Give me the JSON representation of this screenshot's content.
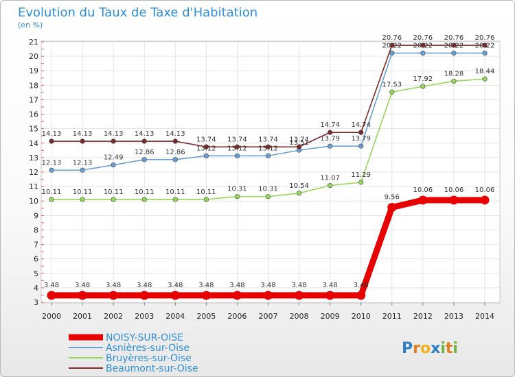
{
  "chart_data": {
    "type": "line",
    "title": "Evolution du Taux de Taxe d'Habitation",
    "subtitle": "(en %)",
    "x": [
      "2000",
      "2001",
      "2002",
      "2003",
      "2004",
      "2005",
      "2006",
      "2007",
      "2008",
      "2009",
      "2010",
      "2011",
      "2012",
      "2013",
      "2014"
    ],
    "ylim": [
      3,
      21
    ],
    "yticks": [
      3,
      4,
      5,
      6,
      7,
      8,
      9,
      10,
      11,
      12,
      13,
      14,
      15,
      16,
      17,
      18,
      19,
      20,
      21
    ],
    "grid": true,
    "legend_position": "bottom-left",
    "series": [
      {
        "name": "NOISY-SUR-OISE",
        "color": "#e60000",
        "values": [
          3.48,
          3.48,
          3.48,
          3.48,
          3.48,
          3.48,
          3.48,
          3.48,
          3.48,
          3.48,
          3.48,
          9.56,
          10.06,
          10.06,
          10.06
        ],
        "labels": [
          "3.48",
          "3.48",
          "3.48",
          "3.48",
          "3.48",
          "3.48",
          "3.48",
          "3.48",
          "3.48",
          "3.48",
          "3.48",
          "9.56",
          "10.06",
          "10.06",
          "10.06"
        ]
      },
      {
        "name": "Asnières-sur-Oise",
        "color": "#6a9fd3",
        "values": [
          12.13,
          12.13,
          12.49,
          12.86,
          12.86,
          13.12,
          13.12,
          13.12,
          13.51,
          13.79,
          13.79,
          20.22,
          20.22,
          20.22,
          20.22
        ],
        "labels": [
          "12.13",
          "12.13",
          "12.49",
          "12.86",
          "12.86",
          "13.12",
          "13.12",
          "13.12",
          "13.51",
          "13.79",
          "13.79",
          "20.22",
          "20.22",
          "20.22",
          "20.22"
        ]
      },
      {
        "name": "Bruyères-sur-Oise",
        "color": "#96d65a",
        "values": [
          10.11,
          10.11,
          10.11,
          10.11,
          10.11,
          10.11,
          10.31,
          10.31,
          10.54,
          11.07,
          11.29,
          17.53,
          17.92,
          18.28,
          18.44
        ],
        "labels": [
          "10.11",
          "10.11",
          "10.11",
          "10.11",
          "10.11",
          "10.11",
          "10.31",
          "10.31",
          "10.54",
          "11.07",
          "11.29",
          "17.53",
          "17.92",
          "18.28",
          "18.44"
        ]
      },
      {
        "name": "Beaumont-sur-Oise",
        "color": "#7a2a2a",
        "values": [
          14.13,
          14.13,
          14.13,
          14.13,
          14.13,
          13.74,
          13.74,
          13.74,
          13.74,
          14.74,
          14.74,
          20.76,
          20.76,
          20.76,
          20.76
        ],
        "labels": [
          "14.13",
          "14.13",
          "14.13",
          "14.13",
          "14.13",
          "13.74",
          "13.74",
          "13.74",
          "13.74",
          "14.74",
          "14.74",
          "20.76",
          "20.76",
          "20.76",
          "20.76"
        ]
      }
    ]
  },
  "logo": {
    "text": "Proxiti"
  }
}
